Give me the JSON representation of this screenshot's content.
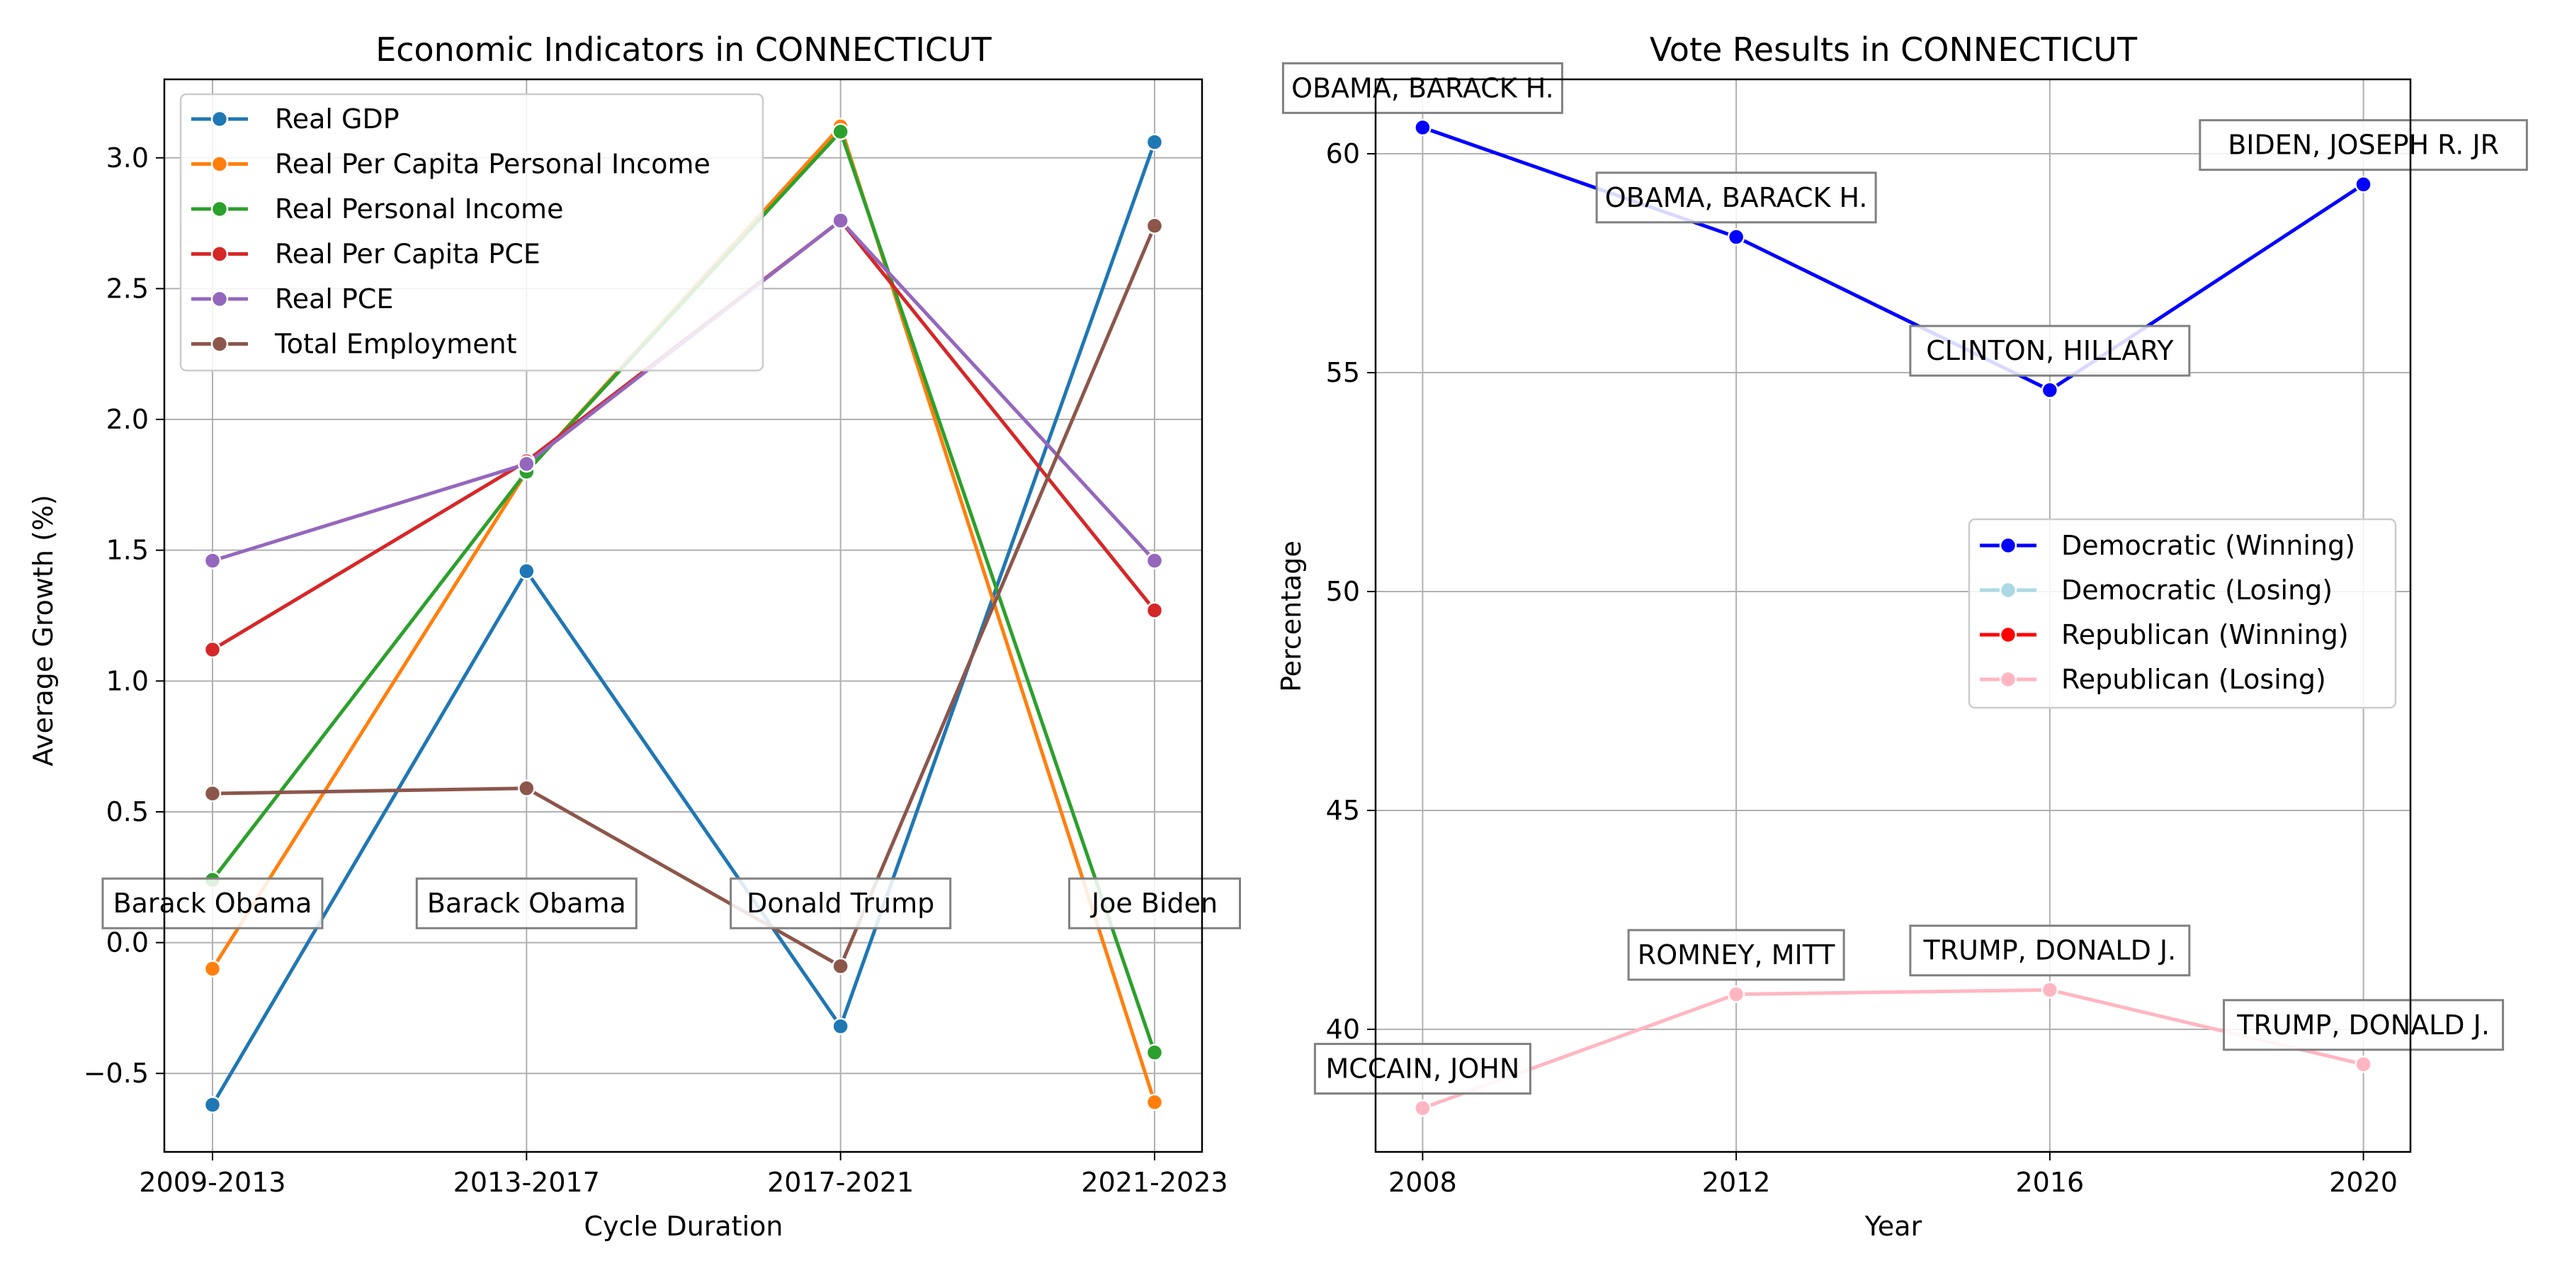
{
  "chart_data": [
    {
      "type": "line",
      "title": "Economic Indicators in CONNECTICUT",
      "xlabel": "Cycle Duration",
      "ylabel": "Average Growth (%)",
      "categories": [
        "2009-2013",
        "2013-2017",
        "2017-2021",
        "2021-2023"
      ],
      "ylim": [
        -0.8,
        3.3
      ],
      "yticks": [
        -0.5,
        0.0,
        0.5,
        1.0,
        1.5,
        2.0,
        2.5,
        3.0
      ],
      "ytick_labels": [
        "−0.5",
        "0.0",
        "0.5",
        "1.0",
        "1.5",
        "2.0",
        "2.5",
        "3.0"
      ],
      "grid": true,
      "legend_position": "top-left",
      "series": [
        {
          "name": "Real GDP",
          "color": "#1f77b4",
          "values": [
            -0.62,
            1.42,
            -0.32,
            3.06
          ]
        },
        {
          "name": "Real Per Capita Personal Income",
          "color": "#ff7f0e",
          "values": [
            -0.1,
            1.8,
            3.12,
            -0.61
          ]
        },
        {
          "name": "Real Personal Income",
          "color": "#2ca02c",
          "values": [
            0.24,
            1.8,
            3.1,
            -0.42
          ]
        },
        {
          "name": "Real Per Capita PCE",
          "color": "#d62728",
          "values": [
            1.12,
            1.84,
            2.76,
            1.27
          ]
        },
        {
          "name": "Real PCE",
          "color": "#9467bd",
          "values": [
            1.46,
            1.83,
            2.76,
            1.46
          ]
        },
        {
          "name": "Total Employment",
          "color": "#8c564b",
          "values": [
            0.57,
            0.59,
            -0.09,
            2.74
          ]
        }
      ],
      "annotations": [
        {
          "text": "Barack Obama",
          "category": "2009-2013",
          "y": 0.15
        },
        {
          "text": "Barack Obama",
          "category": "2013-2017",
          "y": 0.15
        },
        {
          "text": "Donald Trump",
          "category": "2017-2021",
          "y": 0.15
        },
        {
          "text": "Joe Biden",
          "category": "2021-2023",
          "y": 0.15
        }
      ]
    },
    {
      "type": "line",
      "title": "Vote Results in CONNECTICUT",
      "xlabel": "Year",
      "ylabel": "Percentage",
      "x": [
        2008,
        2012,
        2016,
        2020
      ],
      "xlim": [
        2007.4,
        2020.6
      ],
      "ylim": [
        37.2,
        61.7
      ],
      "yticks": [
        40,
        45,
        50,
        55,
        60
      ],
      "grid": true,
      "legend_position": "center-right",
      "legend": [
        {
          "name": "Democratic (Winning)",
          "color": "#0000ff"
        },
        {
          "name": "Democratic (Losing)",
          "color": "#add8e6"
        },
        {
          "name": "Republican (Winning)",
          "color": "#ff0000"
        },
        {
          "name": "Republican (Losing)",
          "color": "#ffb6c1"
        }
      ],
      "series": [
        {
          "name": "Democratic (Winning)",
          "color": "#0000ff",
          "x": [
            2008,
            2012,
            2016,
            2020
          ],
          "values": [
            60.6,
            58.1,
            54.6,
            59.3
          ]
        },
        {
          "name": "Republican (Losing)",
          "color": "#ffb6c1",
          "x": [
            2008,
            2012,
            2016,
            2020
          ],
          "values": [
            38.2,
            40.8,
            40.9,
            39.2
          ]
        }
      ],
      "annotations": [
        {
          "text": "OBAMA, BARACK H.",
          "x": 2008,
          "y": 61.5
        },
        {
          "text": "OBAMA, BARACK H.",
          "x": 2012,
          "y": 59.0
        },
        {
          "text": "CLINTON, HILLARY",
          "x": 2016,
          "y": 55.5
        },
        {
          "text": "BIDEN, JOSEPH R. JR",
          "x": 2020,
          "y": 60.2
        },
        {
          "text": "MCCAIN, JOHN",
          "x": 2008,
          "y": 39.1
        },
        {
          "text": "ROMNEY, MITT",
          "x": 2012,
          "y": 41.7
        },
        {
          "text": "TRUMP, DONALD J.",
          "x": 2016,
          "y": 41.8
        },
        {
          "text": "TRUMP, DONALD J.",
          "x": 2020,
          "y": 40.1
        }
      ]
    }
  ]
}
